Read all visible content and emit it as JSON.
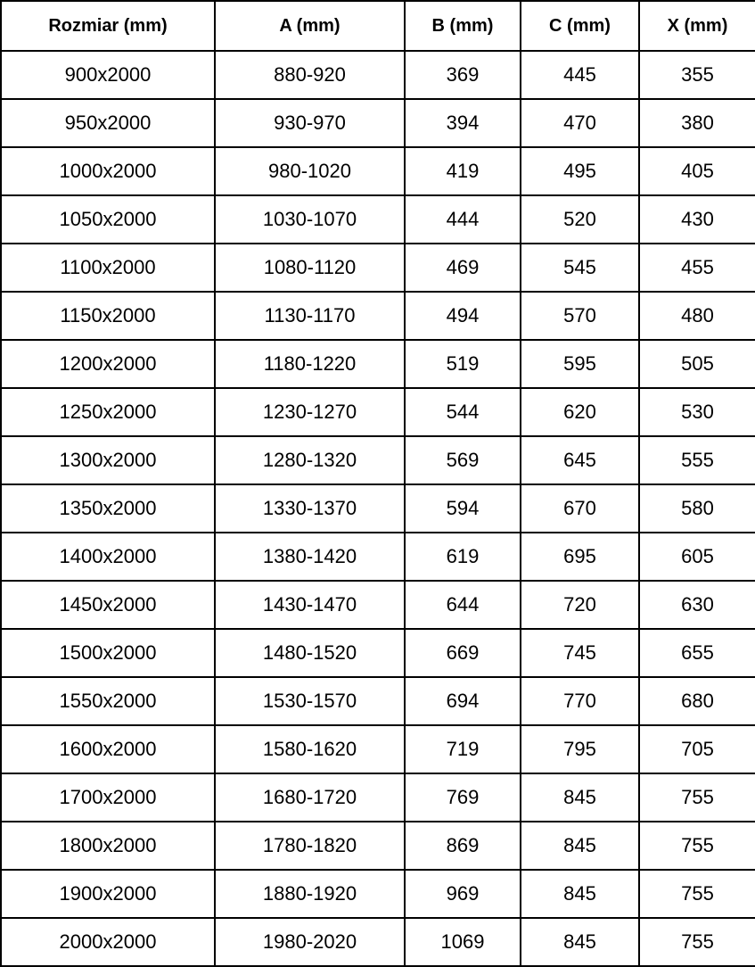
{
  "colors": {
    "border": "#000000",
    "text": "#000000",
    "background": "#ffffff"
  },
  "table": {
    "columns": [
      "Rozmiar (mm)",
      "A (mm)",
      "B (mm)",
      "C (mm)",
      "X (mm)"
    ],
    "rows": [
      [
        "900x2000",
        "880-920",
        "369",
        "445",
        "355"
      ],
      [
        "950x2000",
        "930-970",
        "394",
        "470",
        "380"
      ],
      [
        "1000x2000",
        "980-1020",
        "419",
        "495",
        "405"
      ],
      [
        "1050x2000",
        "1030-1070",
        "444",
        "520",
        "430"
      ],
      [
        "1100x2000",
        "1080-1120",
        "469",
        "545",
        "455"
      ],
      [
        "1150x2000",
        "1130-1170",
        "494",
        "570",
        "480"
      ],
      [
        "1200x2000",
        "1180-1220",
        "519",
        "595",
        "505"
      ],
      [
        "1250x2000",
        "1230-1270",
        "544",
        "620",
        "530"
      ],
      [
        "1300x2000",
        "1280-1320",
        "569",
        "645",
        "555"
      ],
      [
        "1350x2000",
        "1330-1370",
        "594",
        "670",
        "580"
      ],
      [
        "1400x2000",
        "1380-1420",
        "619",
        "695",
        "605"
      ],
      [
        "1450x2000",
        "1430-1470",
        "644",
        "720",
        "630"
      ],
      [
        "1500x2000",
        "1480-1520",
        "669",
        "745",
        "655"
      ],
      [
        "1550x2000",
        "1530-1570",
        "694",
        "770",
        "680"
      ],
      [
        "1600x2000",
        "1580-1620",
        "719",
        "795",
        "705"
      ],
      [
        "1700x2000",
        "1680-1720",
        "769",
        "845",
        "755"
      ],
      [
        "1800x2000",
        "1780-1820",
        "869",
        "845",
        "755"
      ],
      [
        "1900x2000",
        "1880-1920",
        "969",
        "845",
        "755"
      ],
      [
        "2000x2000",
        "1980-2020",
        "1069",
        "845",
        "755"
      ]
    ]
  },
  "chart_data": {
    "type": "table",
    "title": "",
    "columns": [
      "Rozmiar (mm)",
      "A (mm)",
      "B (mm)",
      "C (mm)",
      "X (mm)"
    ],
    "rows": [
      [
        "900x2000",
        "880-920",
        369,
        445,
        355
      ],
      [
        "950x2000",
        "930-970",
        394,
        470,
        380
      ],
      [
        "1000x2000",
        "980-1020",
        419,
        495,
        405
      ],
      [
        "1050x2000",
        "1030-1070",
        444,
        520,
        430
      ],
      [
        "1100x2000",
        "1080-1120",
        469,
        545,
        455
      ],
      [
        "1150x2000",
        "1130-1170",
        494,
        570,
        480
      ],
      [
        "1200x2000",
        "1180-1220",
        519,
        595,
        505
      ],
      [
        "1250x2000",
        "1230-1270",
        544,
        620,
        530
      ],
      [
        "1300x2000",
        "1280-1320",
        569,
        645,
        555
      ],
      [
        "1350x2000",
        "1330-1370",
        594,
        670,
        580
      ],
      [
        "1400x2000",
        "1380-1420",
        619,
        695,
        605
      ],
      [
        "1450x2000",
        "1430-1470",
        644,
        720,
        630
      ],
      [
        "1500x2000",
        "1480-1520",
        669,
        745,
        655
      ],
      [
        "1550x2000",
        "1530-1570",
        694,
        770,
        680
      ],
      [
        "1600x2000",
        "1580-1620",
        719,
        795,
        705
      ],
      [
        "1700x2000",
        "1680-1720",
        769,
        845,
        755
      ],
      [
        "1800x2000",
        "1780-1820",
        869,
        845,
        755
      ],
      [
        "1900x2000",
        "1880-1920",
        969,
        845,
        755
      ],
      [
        "2000x2000",
        "1980-2020",
        1069,
        845,
        755
      ]
    ]
  }
}
